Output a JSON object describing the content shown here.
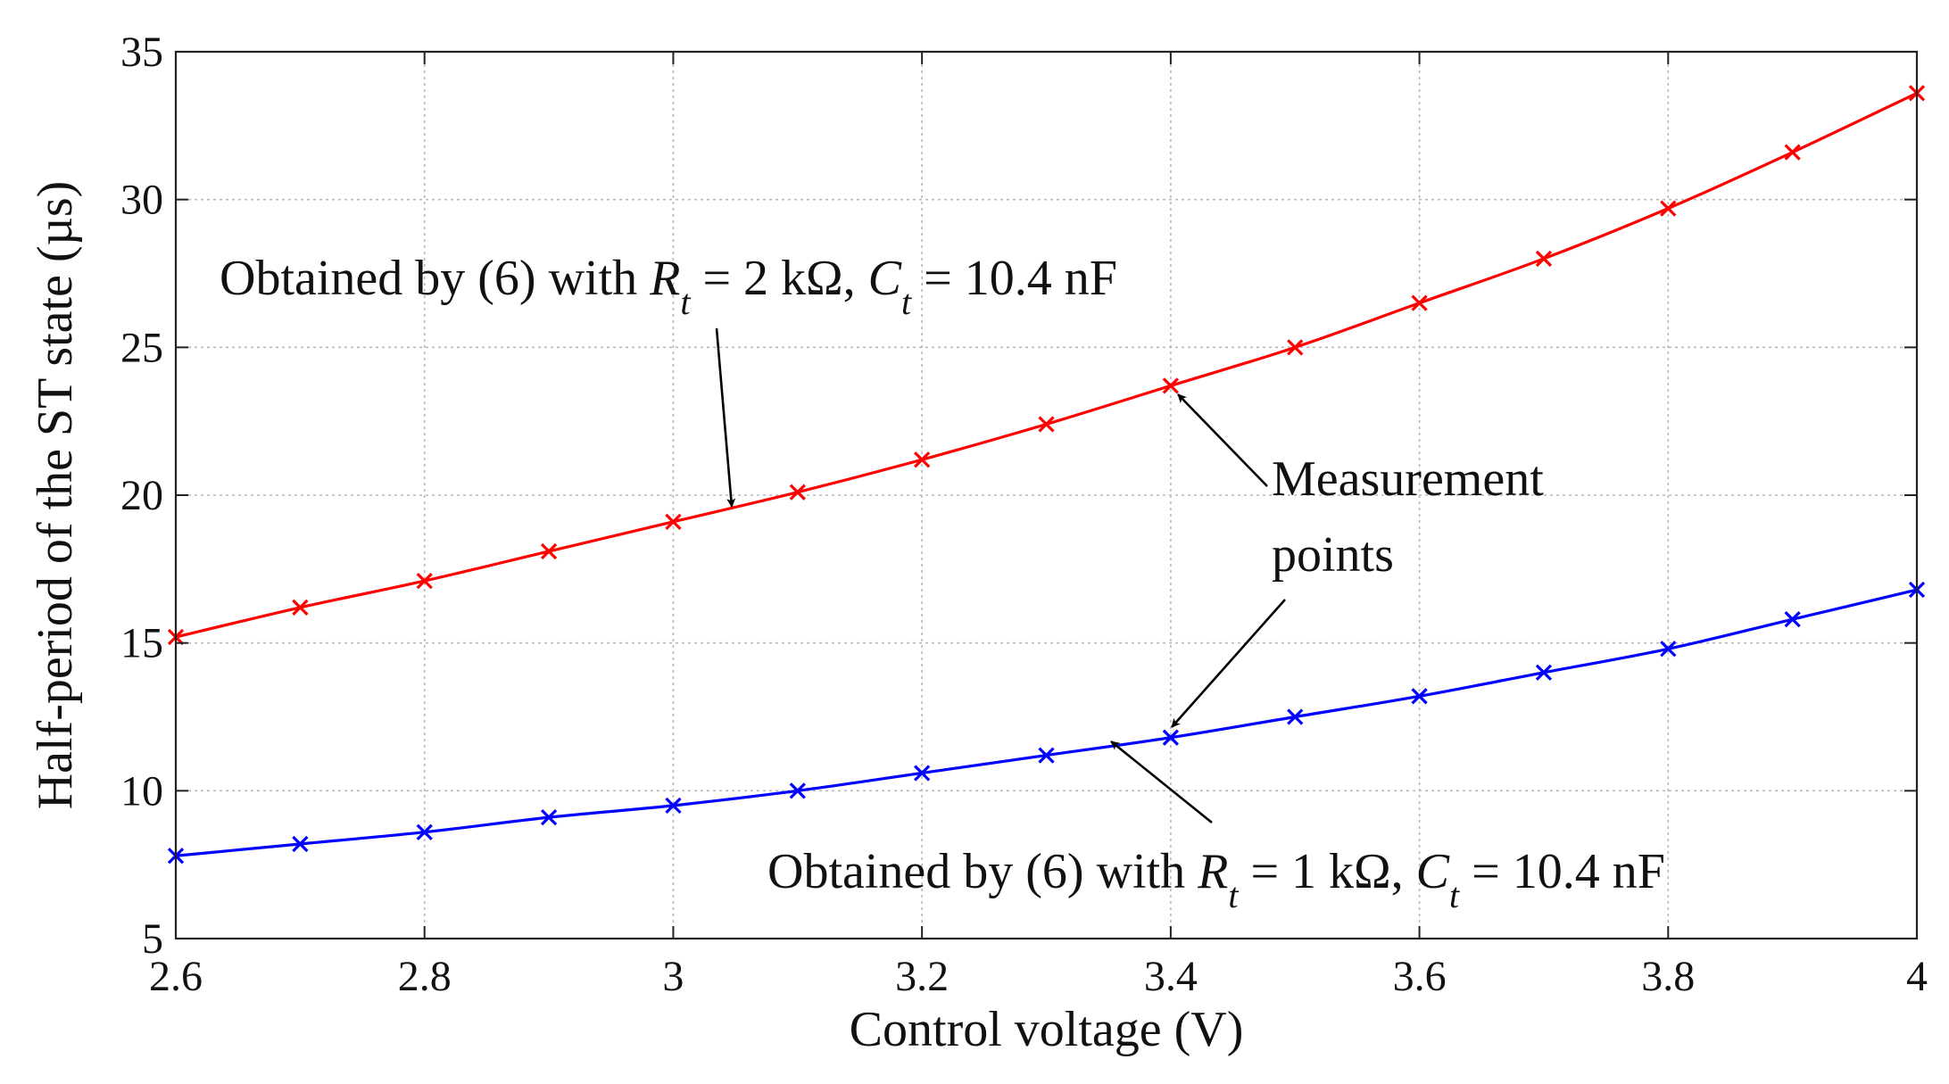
{
  "chart_data": {
    "type": "line",
    "xlabel": "Control voltage (V)",
    "ylabel": "Half-period of the ST state (µs)",
    "xlim": [
      2.6,
      4.0
    ],
    "ylim": [
      5,
      35
    ],
    "xticks": [
      2.6,
      2.8,
      3.0,
      3.2,
      3.4,
      3.6,
      3.8,
      4.0
    ],
    "xtick_labels": [
      "2.6",
      "2.8",
      "3",
      "3.2",
      "3.4",
      "3.6",
      "3.8",
      "4"
    ],
    "yticks": [
      5,
      10,
      15,
      20,
      25,
      30,
      35
    ],
    "ytick_labels": [
      "5",
      "10",
      "15",
      "20",
      "25",
      "30",
      "35"
    ],
    "grid": true,
    "series": [
      {
        "name": "Rt = 2 kΩ",
        "color": "#ff0000",
        "marker": "x",
        "x": [
          2.6,
          2.7,
          2.8,
          2.9,
          3.0,
          3.1,
          3.2,
          3.3,
          3.4,
          3.5,
          3.6,
          3.7,
          3.8,
          3.9,
          4.0
        ],
        "values": [
          15.2,
          16.2,
          17.1,
          18.1,
          19.1,
          20.1,
          21.2,
          22.4,
          23.7,
          25.0,
          26.5,
          28.0,
          29.7,
          31.6,
          33.6
        ]
      },
      {
        "name": "Rt = 1 kΩ",
        "color": "#0000ff",
        "marker": "x",
        "x": [
          2.6,
          2.7,
          2.8,
          2.9,
          3.0,
          3.1,
          3.2,
          3.3,
          3.4,
          3.5,
          3.6,
          3.7,
          3.8,
          3.9,
          4.0
        ],
        "values": [
          7.8,
          8.2,
          8.6,
          9.1,
          9.5,
          10.0,
          10.6,
          11.2,
          11.8,
          12.5,
          13.2,
          14.0,
          14.8,
          15.8,
          16.8
        ]
      }
    ],
    "annotations": {
      "top": {
        "prefix": "Obtained by (6) with ",
        "r": "R",
        "sub": "t",
        "rval": " = 2 kΩ, ",
        "c": "C",
        "cval": " = 10.4 nF"
      },
      "bottom": {
        "prefix": "Obtained by (6) with ",
        "r": "R",
        "sub": "t",
        "rval": " = 1 kΩ, ",
        "c": "C",
        "cval": " = 10.4 nF"
      },
      "measurement_line1": "Measurement",
      "measurement_line2": "points"
    }
  }
}
